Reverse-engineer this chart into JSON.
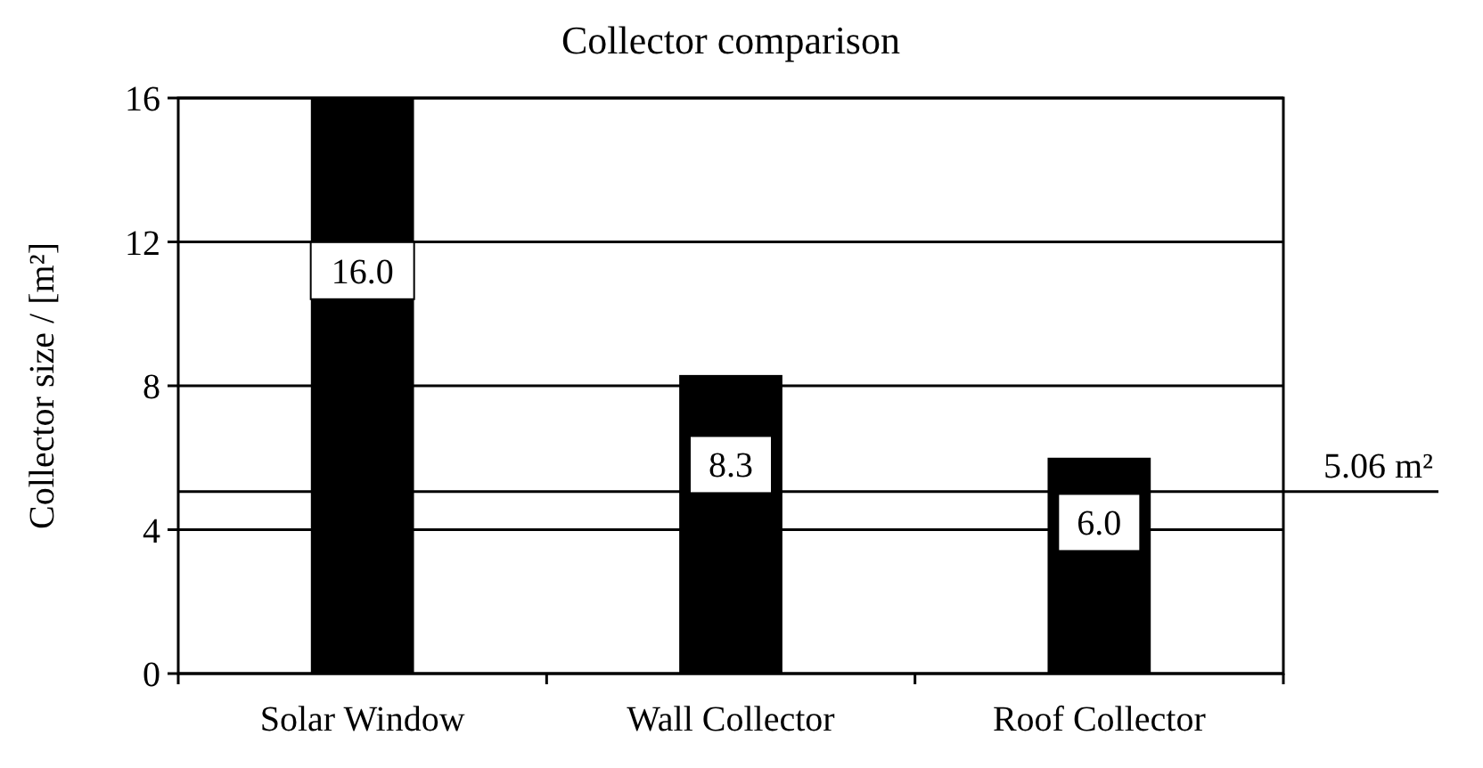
{
  "chart_data": {
    "type": "bar",
    "title": "Collector comparison",
    "ylabel": "Collector size / [m²]",
    "categories": [
      "Solar Window",
      "Wall Collector",
      "Roof Collector"
    ],
    "values": [
      16.0,
      8.3,
      6.0
    ],
    "color": "#000000",
    "ylim": [
      0,
      16
    ],
    "yticks": [
      0,
      4,
      8,
      12,
      16
    ],
    "grid": "y",
    "value_labels": [
      "16.0",
      "8.3",
      "6.0"
    ],
    "ref_lines": [
      {
        "axis": "y",
        "value": 5.06,
        "label": "5.06 m²",
        "color": "#000000"
      }
    ]
  }
}
